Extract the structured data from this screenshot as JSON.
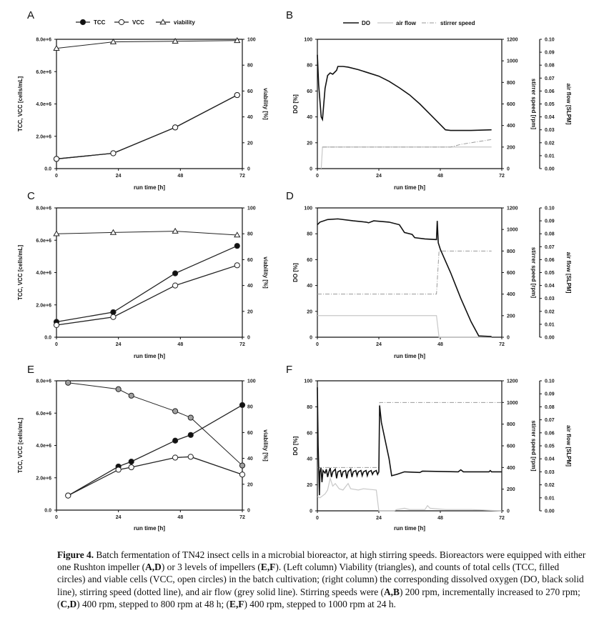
{
  "figure_caption": [
    {
      "text": "Figure 4.",
      "bold": true
    },
    {
      "text": "  Batch fermentation of TN42 insect cells in a microbial bioreactor, at high stirring speeds. Bioreactors were equipped with either one Rushton impeller (",
      "bold": false
    },
    {
      "text": "A,D",
      "bold": true
    },
    {
      "text": ") or 3 levels of impellers (",
      "bold": false
    },
    {
      "text": "E,F",
      "bold": true
    },
    {
      "text": "). (Left column) Viability (triangles), and counts of total cells (TCC, filled circles) and viable cells (VCC, open circles) in the batch cultivation; (right column) the corresponding dissolved oxygen (DO, black solid line), stirring speed (dotted line), and air flow (grey solid line). Stirring speeds were (",
      "bold": false
    },
    {
      "text": "A,B",
      "bold": true
    },
    {
      "text": ") 200 rpm, incrementally increased to 270 rpm; (",
      "bold": false
    },
    {
      "text": "C,D",
      "bold": true
    },
    {
      "text": ") 400 rpm, stepped to 800 rpm at 48 h; (",
      "bold": false
    },
    {
      "text": "E,F",
      "bold": true
    },
    {
      "text": ") 400 rpm, stepped to 1000 rpm at 24 h.",
      "bold": false
    }
  ],
  "colors": {
    "axis": "#111111",
    "do": "#111111",
    "air_flow": "#c8c8c8",
    "stirrer": "#9a9a9a",
    "viability_marker_E": "#a0a0a0"
  },
  "chart_data": [
    {
      "panel": "A",
      "type": "line",
      "legend_position": "top",
      "legend": [
        "TCC",
        "VCC",
        "viability"
      ],
      "xlabel": "run time [h]",
      "ylabel": "TCC, VCC [cells/mL]",
      "y2label": "viability [%]",
      "xlim": [
        0,
        72
      ],
      "xticks": [
        "0",
        "24",
        "48",
        "72"
      ],
      "ylim": [
        0,
        8000000
      ],
      "yticks": [
        "0.0",
        "2.0e+6",
        "4.0e+6",
        "6.0e+6",
        "8.0e+6"
      ],
      "y2lim": [
        0,
        100
      ],
      "y2ticks": [
        "0",
        "20",
        "40",
        "60",
        "80",
        "100"
      ],
      "x": [
        0,
        22,
        46,
        70
      ],
      "series": [
        {
          "name": "TCC",
          "marker": "filled-circle",
          "values": [
            600000,
            950000,
            2550000,
            4550000
          ]
        },
        {
          "name": "VCC",
          "marker": "open-circle",
          "values": [
            600000,
            950000,
            2550000,
            4550000
          ]
        },
        {
          "name": "viability",
          "marker": "triangle",
          "axis": "right",
          "values": [
            93,
            98,
            98.5,
            99
          ]
        }
      ]
    },
    {
      "panel": "B",
      "type": "line",
      "legend_position": "top",
      "legend": [
        "DO",
        "air flow",
        "stirrer speed"
      ],
      "xlabel": "run time [h]",
      "ylabel": "DO [%]",
      "y2label": "stirrer speed [rpm]",
      "y3label": "air flow [SLPM]",
      "xlim": [
        0,
        72
      ],
      "xticks": [
        "0",
        "24",
        "48",
        "72"
      ],
      "ylim": [
        0,
        100
      ],
      "yticks": [
        "0",
        "20",
        "40",
        "60",
        "80",
        "100"
      ],
      "y2lim": [
        0,
        1200
      ],
      "y2ticks": [
        "0",
        "200",
        "400",
        "600",
        "800",
        "1000",
        "1200"
      ],
      "y3lim": [
        0,
        0.1
      ],
      "y3ticks": [
        "0.00",
        "0.01",
        "0.02",
        "0.03",
        "0.04",
        "0.05",
        "0.06",
        "0.07",
        "0.08",
        "0.09",
        "0.10"
      ],
      "series": [
        {
          "name": "DO",
          "axis": "left",
          "points": [
            [
              0,
              88
            ],
            [
              0.5,
              65
            ],
            [
              1.5,
              40
            ],
            [
              2,
              38
            ],
            [
              3,
              62
            ],
            [
              4,
              72
            ],
            [
              5,
              74
            ],
            [
              6,
              73
            ],
            [
              7,
              75
            ],
            [
              7.5,
              76
            ],
            [
              8,
              79
            ],
            [
              10,
              79
            ],
            [
              12,
              78.5
            ],
            [
              16,
              76.5
            ],
            [
              20,
              74
            ],
            [
              24,
              71.5
            ],
            [
              28,
              67.5
            ],
            [
              32,
              62.5
            ],
            [
              36,
              57
            ],
            [
              40,
              50
            ],
            [
              44,
              42
            ],
            [
              48,
              34
            ],
            [
              50,
              30
            ],
            [
              52,
              29.5
            ],
            [
              60,
              29.5
            ],
            [
              68,
              30
            ]
          ]
        },
        {
          "name": "air flow",
          "axis": "right-outer",
          "points": [
            [
              1.5,
              0
            ],
            [
              2,
              0.0167
            ],
            [
              68,
              0.0167
            ]
          ]
        },
        {
          "name": "stirrer speed",
          "axis": "right",
          "points": [
            [
              2,
              200
            ],
            [
              52,
              200
            ],
            [
              56,
              225
            ],
            [
              60,
              240
            ],
            [
              64,
              255
            ],
            [
              68,
              270
            ]
          ]
        }
      ]
    },
    {
      "panel": "C",
      "type": "line",
      "xlabel": "run time [h]",
      "ylabel": "TCC, VCC [cells/mL]",
      "y2label": "viability [%]",
      "xlim": [
        0,
        72
      ],
      "xticks": [
        "0",
        "24",
        "48",
        "72"
      ],
      "ylim": [
        0,
        8000000
      ],
      "yticks": [
        "0.0",
        "2.0e+6",
        "4.0e+6",
        "6.0e+6",
        "8.0e+6"
      ],
      "y2lim": [
        0,
        100
      ],
      "y2ticks": [
        "0",
        "20",
        "40",
        "60",
        "80",
        "100"
      ],
      "x": [
        0,
        22,
        46,
        70
      ],
      "series": [
        {
          "name": "TCC",
          "marker": "filled-circle",
          "values": [
            950000,
            1550000,
            3950000,
            5650000
          ]
        },
        {
          "name": "VCC",
          "marker": "open-circle",
          "values": [
            750000,
            1250000,
            3200000,
            4450000
          ]
        },
        {
          "name": "viability",
          "marker": "triangle",
          "axis": "right",
          "values": [
            80,
            81,
            82,
            79
          ]
        }
      ]
    },
    {
      "panel": "D",
      "type": "line",
      "xlabel": "run time [h]",
      "ylabel": "DO [%]",
      "y2label": "stirrer speed [rpm]",
      "y3label": "air flow [SLPM]",
      "xlim": [
        0,
        72
      ],
      "xticks": [
        "0",
        "24",
        "48",
        "72"
      ],
      "ylim": [
        0,
        100
      ],
      "yticks": [
        "0",
        "20",
        "40",
        "60",
        "80",
        "100"
      ],
      "y2lim": [
        0,
        1200
      ],
      "y2ticks": [
        "0",
        "200",
        "400",
        "600",
        "800",
        "1000",
        "1200"
      ],
      "y3lim": [
        0,
        0.1
      ],
      "y3ticks": [
        "0.00",
        "0.01",
        "0.02",
        "0.03",
        "0.04",
        "0.05",
        "0.06",
        "0.07",
        "0.08",
        "0.09",
        "0.10"
      ],
      "series": [
        {
          "name": "DO",
          "axis": "left",
          "points": [
            [
              0,
              87
            ],
            [
              1,
              89
            ],
            [
              4,
              91
            ],
            [
              8,
              91.5
            ],
            [
              14,
              90
            ],
            [
              19,
              89
            ],
            [
              20,
              88.5
            ],
            [
              22,
              90
            ],
            [
              28,
              89
            ],
            [
              32,
              87
            ],
            [
              33,
              84
            ],
            [
              34,
              81
            ],
            [
              37,
              79.5
            ],
            [
              38,
              77
            ],
            [
              42,
              76
            ],
            [
              46.5,
              75.5
            ],
            [
              46.8,
              90
            ],
            [
              47.2,
              73
            ],
            [
              48,
              68
            ],
            [
              52,
              50
            ],
            [
              56,
              30
            ],
            [
              60,
              12
            ],
            [
              63,
              1
            ],
            [
              68,
              0.5
            ]
          ]
        },
        {
          "name": "air flow",
          "axis": "right-outer",
          "points": [
            [
              0,
              0.0167
            ],
            [
              46.5,
              0.0167
            ],
            [
              47.5,
              0
            ],
            [
              68,
              0
            ]
          ]
        },
        {
          "name": "stirrer speed",
          "axis": "right",
          "points": [
            [
              0,
              400
            ],
            [
              46.5,
              400
            ],
            [
              47.5,
              800
            ],
            [
              68,
              800
            ]
          ]
        }
      ]
    },
    {
      "panel": "E",
      "type": "line",
      "xlabel": "run time [h]",
      "ylabel": "TCC, VCC [cells/mL]",
      "y2label": "viability [%]",
      "xlim": [
        0,
        72
      ],
      "xticks": [
        "0",
        "24",
        "48",
        "72"
      ],
      "ylim": [
        0,
        8000000
      ],
      "yticks": [
        "0.0",
        "2.0e+6",
        "4.0e+6",
        "6.0e+6",
        "8.0e+6"
      ],
      "y2lim": [
        0,
        100
      ],
      "y2ticks": [
        "0",
        "20",
        "40",
        "60",
        "80",
        "100"
      ],
      "x": [
        4.5,
        24,
        29,
        46,
        52,
        72
      ],
      "series": [
        {
          "name": "TCC",
          "marker": "filled-circle",
          "values": [
            900000,
            2700000,
            3000000,
            4300000,
            4650000,
            6500000
          ]
        },
        {
          "name": "VCC",
          "marker": "open-circle",
          "values": [
            900000,
            2500000,
            2650000,
            3250000,
            3300000,
            2200000
          ]
        },
        {
          "name": "viability",
          "marker": "grey-circle",
          "axis": "right",
          "values": [
            98.5,
            93.5,
            88.5,
            76.5,
            71.5,
            34.5
          ]
        }
      ]
    },
    {
      "panel": "F",
      "type": "line",
      "xlabel": "run time [h]",
      "ylabel": "DO [%]",
      "y2label": "stirrer speed [rpm]",
      "y3label": "air flow [SLPM]",
      "xlim": [
        0,
        72
      ],
      "xticks": [
        "0",
        "24",
        "48",
        "72"
      ],
      "ylim": [
        0,
        100
      ],
      "yticks": [
        "0",
        "20",
        "40",
        "60",
        "80",
        "100"
      ],
      "y2lim": [
        0,
        1200
      ],
      "y2ticks": [
        "0",
        "200",
        "400",
        "600",
        "800",
        "1000",
        "1200"
      ],
      "y3lim": [
        0,
        0.1
      ],
      "y3ticks": [
        "0.00",
        "0.01",
        "0.02",
        "0.03",
        "0.04",
        "0.05",
        "0.06",
        "0.07",
        "0.08",
        "0.09",
        "0.10"
      ],
      "series": [
        {
          "name": "DO",
          "axis": "left",
          "points": [
            [
              0,
              95
            ],
            [
              0.3,
              50
            ],
            [
              0.8,
              12
            ],
            [
              1,
              30
            ],
            [
              1.4,
              33
            ],
            [
              1.8,
              22
            ],
            [
              2.2,
              31
            ],
            [
              3,
              29
            ],
            [
              3.5,
              32
            ],
            [
              4,
              26
            ],
            [
              4.5,
              30
            ],
            [
              5,
              33
            ],
            [
              5.5,
              26
            ],
            [
              6,
              30
            ],
            [
              7,
              32
            ],
            [
              7.5,
              25
            ],
            [
              8,
              30
            ],
            [
              9,
              31
            ],
            [
              9.5,
              26
            ],
            [
              10,
              30
            ],
            [
              11,
              31
            ],
            [
              11.5,
              25
            ],
            [
              12,
              30
            ],
            [
              13,
              32
            ],
            [
              13.5,
              26
            ],
            [
              14,
              30
            ],
            [
              15,
              31
            ],
            [
              15.5,
              27
            ],
            [
              16,
              30
            ],
            [
              17,
              31
            ],
            [
              17.5,
              27
            ],
            [
              18,
              30
            ],
            [
              19,
              31
            ],
            [
              19.5,
              27
            ],
            [
              20,
              30
            ],
            [
              21,
              31
            ],
            [
              21.5,
              28
            ],
            [
              22,
              30
            ],
            [
              23,
              31
            ],
            [
              23.5,
              28
            ],
            [
              24,
              30
            ],
            [
              24.3,
              81
            ],
            [
              25,
              68
            ],
            [
              28,
              40
            ],
            [
              29,
              27
            ],
            [
              31,
              28
            ],
            [
              34,
              30
            ],
            [
              40,
              29.5
            ],
            [
              41,
              30.5
            ],
            [
              55,
              30
            ],
            [
              56,
              31.5
            ],
            [
              57,
              30
            ],
            [
              67,
              30
            ],
            [
              67.5,
              31
            ],
            [
              68,
              30
            ],
            [
              72,
              30
            ]
          ]
        },
        {
          "name": "air flow",
          "axis": "right-outer",
          "points": [
            [
              0,
              0.011
            ],
            [
              1,
              0.01
            ],
            [
              3,
              0.013
            ],
            [
              4,
              0.016
            ],
            [
              5,
              0.025
            ],
            [
              6,
              0.019
            ],
            [
              7,
              0.021
            ],
            [
              8.5,
              0.017
            ],
            [
              10,
              0.016
            ],
            [
              12,
              0.021
            ],
            [
              13,
              0.017
            ],
            [
              16,
              0.016
            ],
            [
              18,
              0.017
            ],
            [
              23,
              0.016
            ],
            [
              24,
              0
            ],
            [
              30,
              0
            ],
            [
              31,
              0.001
            ],
            [
              34,
              0.002
            ],
            [
              36,
              0.001
            ],
            [
              42,
              0.001
            ],
            [
              43,
              0.004
            ],
            [
              44,
              0.002
            ],
            [
              50,
              0.001
            ],
            [
              60,
              0.001
            ],
            [
              66,
              0.0005
            ],
            [
              72,
              0
            ]
          ]
        },
        {
          "name": "stirrer speed",
          "axis": "right",
          "points": [
            [
              0,
              400
            ],
            [
              24,
              400
            ],
            [
              24.3,
              1000
            ],
            [
              72,
              1000
            ]
          ]
        }
      ]
    }
  ]
}
